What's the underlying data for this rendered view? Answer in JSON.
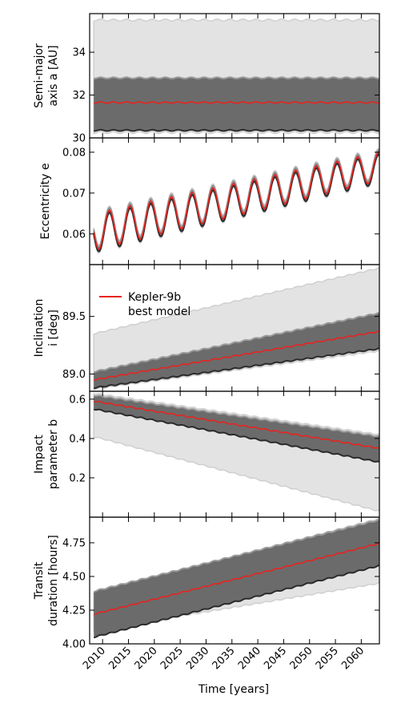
{
  "chart_data": {
    "type": "line",
    "xlabel": "Time [years]",
    "xlim": [
      2007.5,
      2063.5
    ],
    "xticks": [
      2010,
      2015,
      2020,
      2025,
      2030,
      2035,
      2040,
      2045,
      2050,
      2055,
      2060
    ],
    "legend": {
      "placement": "upper-left of third panel",
      "entries": [
        {
          "line1": "Kepler-9b",
          "line2": "best model"
        }
      ]
    },
    "colors": {
      "best_model": "#e8231f",
      "outer_band": "#e3e3e3",
      "outer_edge": "#cfcfcf",
      "inner_band": "#6b6b6b",
      "inner_edge_a": "#9a9a9a",
      "inner_edge_b": "#2b2b2b"
    },
    "panels": [
      {
        "id": "semi-major-axis",
        "ylabel_line1": "Semi-major",
        "ylabel_line2": "axis a [AU]",
        "ylim": [
          30,
          35.8
        ],
        "yticks": [
          30,
          32,
          34
        ],
        "tick_labels": [
          "30",
          "32",
          "34"
        ],
        "best_model": {
          "start": 31.65,
          "end": 31.65,
          "wiggle": 0.03,
          "period": 2.5
        },
        "band_inner": [
          30.35,
          32.8
        ],
        "band_outer": [
          30.25,
          35.5
        ]
      },
      {
        "id": "eccentricity",
        "ylabel_line1": "Eccentricity e",
        "ylabel_line2": "",
        "ylim": [
          0.0525,
          0.0835
        ],
        "yticks": [
          0.06,
          0.07,
          0.08
        ],
        "tick_labels": [
          "0.06",
          "0.07",
          "0.08"
        ],
        "best_model": {
          "start_mean": 0.0605,
          "end_mean": 0.0765,
          "start_amp": 0.0045,
          "end_amp": 0.0035,
          "period": 4.0,
          "phase_year": 2009.3
        },
        "band_inner_halfwidth": 0.0006,
        "band_outer_halfwidth": 0.001
      },
      {
        "id": "inclination",
        "ylabel_line1": "Inclination",
        "ylabel_line2": "i [deg]",
        "ylim": [
          88.85,
          89.95
        ],
        "yticks": [
          89.0,
          89.5
        ],
        "tick_labels": [
          "89.0",
          "89.5"
        ],
        "best_model": {
          "start": 88.95,
          "end": 89.37
        },
        "band_inner_start": [
          88.88,
          89.02
        ],
        "band_inner_end": [
          89.22,
          89.53
        ],
        "band_outer_start": [
          88.87,
          89.35
        ],
        "band_outer_end": [
          89.2,
          89.92
        ]
      },
      {
        "id": "impact-parameter",
        "ylabel_line1": "Impact",
        "ylabel_line2": "parameter b",
        "ylim": [
          0.0,
          0.64
        ],
        "yticks": [
          0.2,
          0.4,
          0.6
        ],
        "tick_labels": [
          "0.2",
          "0.4",
          "0.6"
        ],
        "best_model": {
          "start": 0.59,
          "end": 0.35
        },
        "band_inner_start": [
          0.55,
          0.62
        ],
        "band_inner_end": [
          0.28,
          0.41
        ],
        "band_outer_start": [
          0.41,
          0.63
        ],
        "band_outer_end": [
          0.03,
          0.42
        ]
      },
      {
        "id": "transit-duration",
        "ylabel_line1": "Transit",
        "ylabel_line2": "duration [hours]",
        "ylim": [
          4.0,
          4.94
        ],
        "yticks": [
          4.0,
          4.25,
          4.5,
          4.75
        ],
        "tick_labels": [
          "4.00",
          "4.25",
          "4.50",
          "4.75"
        ],
        "best_model": {
          "start": 4.22,
          "end": 4.745
        },
        "band_inner_start": [
          4.05,
          4.39
        ],
        "band_inner_end": [
          4.58,
          4.92
        ],
        "band_outer_start": [
          4.1,
          4.38
        ],
        "band_outer_end": [
          4.45,
          4.93
        ]
      }
    ]
  }
}
